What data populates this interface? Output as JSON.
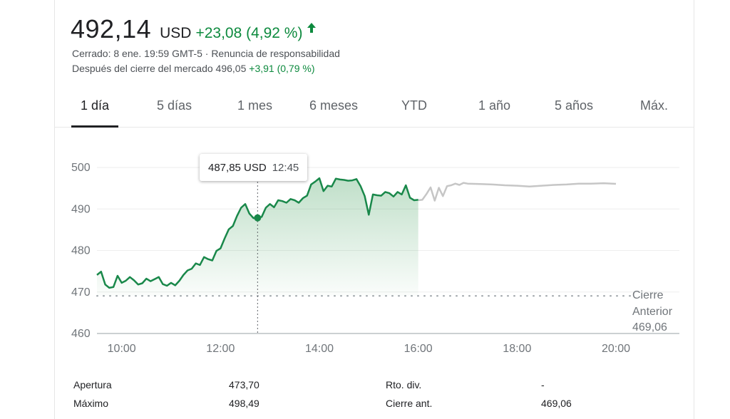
{
  "quote": {
    "price": "492,14",
    "currency": "USD",
    "change": "+23,08 (4,92 %)",
    "closed_line": "Cerrado: 8 ene. 19:59 GMT-5 · Renuncia de responsabilidad",
    "after_hours_label": "Después del cierre del mercado 496,05",
    "after_hours_change": "+3,91 (0,79 %)"
  },
  "colors": {
    "positive": "#0d8a3e",
    "line": "#19884a",
    "after_hours_line": "#c6c6c6",
    "grid": "#eeeeee"
  },
  "tabs": [
    {
      "label": "1 día",
      "active": true
    },
    {
      "label": "5 días",
      "active": false
    },
    {
      "label": "1 mes",
      "active": false
    },
    {
      "label": "6 meses",
      "active": false
    },
    {
      "label": "YTD",
      "active": false
    },
    {
      "label": "1 año",
      "active": false
    },
    {
      "label": "5 años",
      "active": false
    },
    {
      "label": "Máx.",
      "active": false
    }
  ],
  "tooltip": {
    "price": "487,85 USD",
    "time": "12:45"
  },
  "prev_close_label": [
    "Cierre",
    "Anterior",
    "469,06"
  ],
  "stats": [
    {
      "label": "Apertura",
      "value": "473,70"
    },
    {
      "label": "Máximo",
      "value": "498,49"
    },
    {
      "label": "Rto. div.",
      "value": "-"
    },
    {
      "label": "Cierre ant.",
      "value": "469,06"
    }
  ],
  "chart_data": {
    "type": "line",
    "title": "",
    "xlabel": "",
    "ylabel": "",
    "x_ticks": [
      "10:00",
      "12:00",
      "14:00",
      "16:00",
      "18:00",
      "20:00"
    ],
    "y_ticks": [
      460,
      470,
      480,
      490,
      500
    ],
    "ylim": [
      460,
      500
    ],
    "x_range": [
      "09:30",
      "20:00"
    ],
    "previous_close": 469.06,
    "highlight": {
      "x": "12:45",
      "y": 487.85
    },
    "series": [
      {
        "segment": "market",
        "x": [
          "09:30",
          "09:35",
          "09:40",
          "09:45",
          "09:50",
          "09:55",
          "10:00",
          "10:05",
          "10:10",
          "10:15",
          "10:20",
          "10:25",
          "10:30",
          "10:35",
          "10:40",
          "10:45",
          "10:50",
          "10:55",
          "11:00",
          "11:05",
          "11:10",
          "11:15",
          "11:20",
          "11:25",
          "11:30",
          "11:35",
          "11:40",
          "11:45",
          "11:50",
          "11:55",
          "12:00",
          "12:05",
          "12:10",
          "12:15",
          "12:20",
          "12:25",
          "12:30",
          "12:35",
          "12:40",
          "12:45",
          "12:50",
          "12:55",
          "13:00",
          "13:05",
          "13:10",
          "13:15",
          "13:20",
          "13:25",
          "13:30",
          "13:35",
          "13:40",
          "13:45",
          "13:50",
          "13:55",
          "14:00",
          "14:05",
          "14:10",
          "14:15",
          "14:20",
          "14:25",
          "14:30",
          "14:35",
          "14:40",
          "14:45",
          "14:50",
          "14:55",
          "15:00",
          "15:05",
          "15:10",
          "15:15",
          "15:20",
          "15:25",
          "15:30",
          "15:35",
          "15:40",
          "15:45",
          "15:50",
          "15:55",
          "16:00"
        ],
        "values": [
          474.1,
          474.9,
          471.8,
          471.0,
          471.2,
          473.9,
          472.2,
          472.7,
          473.6,
          472.8,
          471.8,
          472.1,
          473.2,
          472.6,
          473.1,
          473.6,
          471.9,
          471.5,
          472.2,
          471.6,
          472.7,
          474.1,
          475.2,
          475.6,
          476.9,
          476.5,
          478.4,
          477.9,
          477.6,
          479.9,
          480.5,
          482.9,
          485.1,
          485.9,
          488.3,
          490.3,
          491.2,
          488.9,
          487.8,
          487.85,
          488.1,
          490.3,
          491.2,
          490.4,
          492.1,
          491.9,
          491.5,
          492.4,
          492.1,
          491.5,
          492.6,
          493.2,
          495.9,
          496.6,
          497.4,
          494.3,
          495.6,
          495.4,
          497.3,
          497.1,
          497.0,
          496.8,
          496.9,
          497.2,
          495.5,
          493.1,
          488.6,
          493.5,
          493.3,
          493.2,
          494.1,
          493.8,
          493.0,
          494.1,
          493.5,
          495.7,
          492.7,
          492.1,
          492.2
        ]
      },
      {
        "segment": "after_hours",
        "x": [
          "16:00",
          "16:05",
          "16:10",
          "16:15",
          "16:20",
          "16:25",
          "16:30",
          "16:35",
          "16:40",
          "16:45",
          "16:50",
          "16:55",
          "17:00",
          "17:15",
          "17:30",
          "17:45",
          "18:00",
          "18:15",
          "18:30",
          "18:45",
          "19:00",
          "19:15",
          "19:30",
          "19:45",
          "20:00"
        ],
        "values": [
          492.1,
          492.2,
          493.6,
          495.2,
          492.0,
          495.1,
          493.1,
          495.5,
          495.7,
          496.1,
          495.8,
          496.3,
          496.1,
          496.0,
          495.9,
          495.7,
          495.6,
          495.4,
          495.6,
          495.8,
          495.9,
          496.1,
          496.1,
          496.2,
          496.05
        ]
      }
    ]
  }
}
